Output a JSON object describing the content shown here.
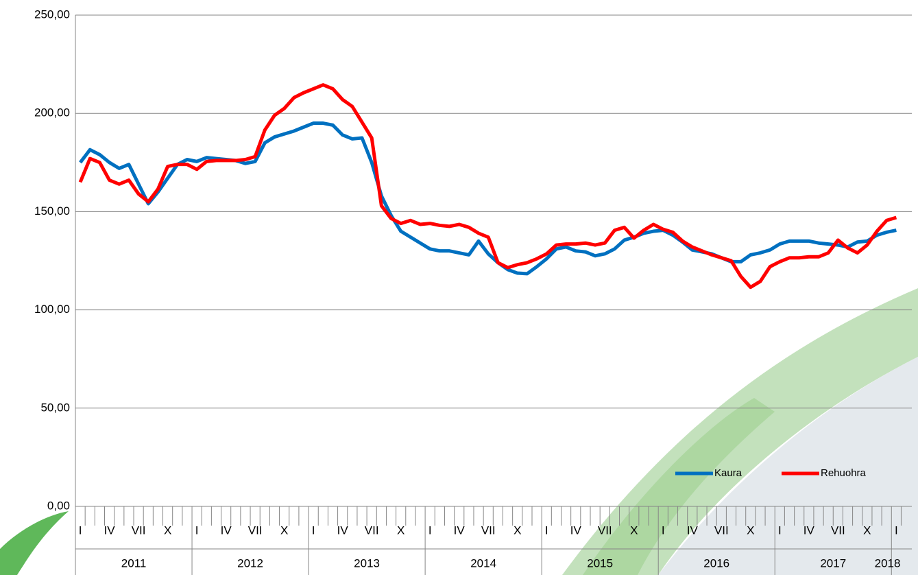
{
  "chart_data": {
    "type": "line",
    "categories": [
      "I",
      null,
      null,
      "IV",
      null,
      null,
      "VII",
      null,
      null,
      "X",
      null,
      null,
      "I",
      null,
      null,
      "IV",
      null,
      null,
      "VII",
      null,
      null,
      "X",
      null,
      null,
      "I",
      null,
      null,
      "IV",
      null,
      null,
      "VII",
      null,
      null,
      "X",
      null,
      null,
      "I",
      null,
      null,
      "IV",
      null,
      null,
      "VII",
      null,
      null,
      "X",
      null,
      null,
      "I",
      null,
      null,
      "IV",
      null,
      null,
      "VII",
      null,
      null,
      "X",
      null,
      null,
      "I",
      null,
      null,
      "IV",
      null,
      null,
      "VII",
      null,
      null,
      "X",
      null,
      null,
      "I",
      null,
      null,
      "IV",
      null,
      null,
      "VII",
      null,
      null,
      "X",
      null,
      null,
      "I"
    ],
    "years": [
      "2011",
      "2012",
      "2013",
      "2014",
      "2015",
      "2016",
      "2017",
      "2018"
    ],
    "series": [
      {
        "name": "Kaura",
        "color": "#0070c0",
        "values": [
          175,
          181.5,
          179,
          175,
          172,
          174,
          164,
          154,
          160,
          167,
          174,
          176.5,
          175.5,
          177.5,
          177,
          176.5,
          176,
          174.5,
          175.5,
          185,
          188,
          189.5,
          191,
          193,
          195,
          195,
          194,
          189,
          187,
          187.5,
          175,
          158,
          148,
          140,
          137,
          134,
          131,
          130,
          130,
          129,
          128,
          135,
          128.5,
          124,
          120.5,
          118.7,
          118.4,
          122,
          126,
          131,
          132,
          130,
          129.5,
          127.5,
          128.5,
          131,
          135.5,
          137,
          139,
          140,
          140.5,
          138,
          134.5,
          130.5,
          129.5,
          128.5,
          126.5,
          124.5,
          124.5,
          128,
          129,
          130.5,
          133.5,
          135,
          135,
          135,
          134,
          133.5,
          133,
          132,
          134.5,
          135,
          138,
          139.5,
          140.5
        ]
      },
      {
        "name": "Rehuohra",
        "color": "#ff0000",
        "values": [
          165,
          177,
          175,
          166,
          164,
          166,
          159,
          155,
          161.5,
          173,
          174,
          174,
          171.5,
          175.5,
          176,
          176,
          176,
          176.5,
          178,
          191.5,
          199,
          202.5,
          208,
          210.5,
          212.5,
          214.5,
          212.5,
          207,
          203.5,
          195.5,
          187.5,
          153,
          146.5,
          144,
          145.5,
          143.5,
          144,
          143,
          142.5,
          143.5,
          142,
          139,
          137,
          124,
          121.5,
          123,
          124,
          126,
          128.5,
          133,
          133.5,
          133.5,
          134,
          133,
          134,
          140.5,
          142,
          136.5,
          140.5,
          143.5,
          141,
          139.5,
          135,
          132,
          130,
          128,
          126.5,
          125,
          117,
          111.5,
          114.5,
          122,
          124.5,
          126.5,
          126.5,
          127,
          127,
          129,
          135.5,
          131.5,
          129,
          133,
          140,
          145.5,
          147
        ]
      }
    ],
    "ylim": [
      0,
      250
    ],
    "yticks": [
      {
        "value": 0,
        "label": "0,00"
      },
      {
        "value": 50,
        "label": "50,00"
      },
      {
        "value": 100,
        "label": "100,00"
      },
      {
        "value": 150,
        "label": "150,00"
      },
      {
        "value": 200,
        "label": "200,00"
      },
      {
        "value": 250,
        "label": "250,00"
      }
    ],
    "grid": true,
    "legend": "bottom-right"
  }
}
